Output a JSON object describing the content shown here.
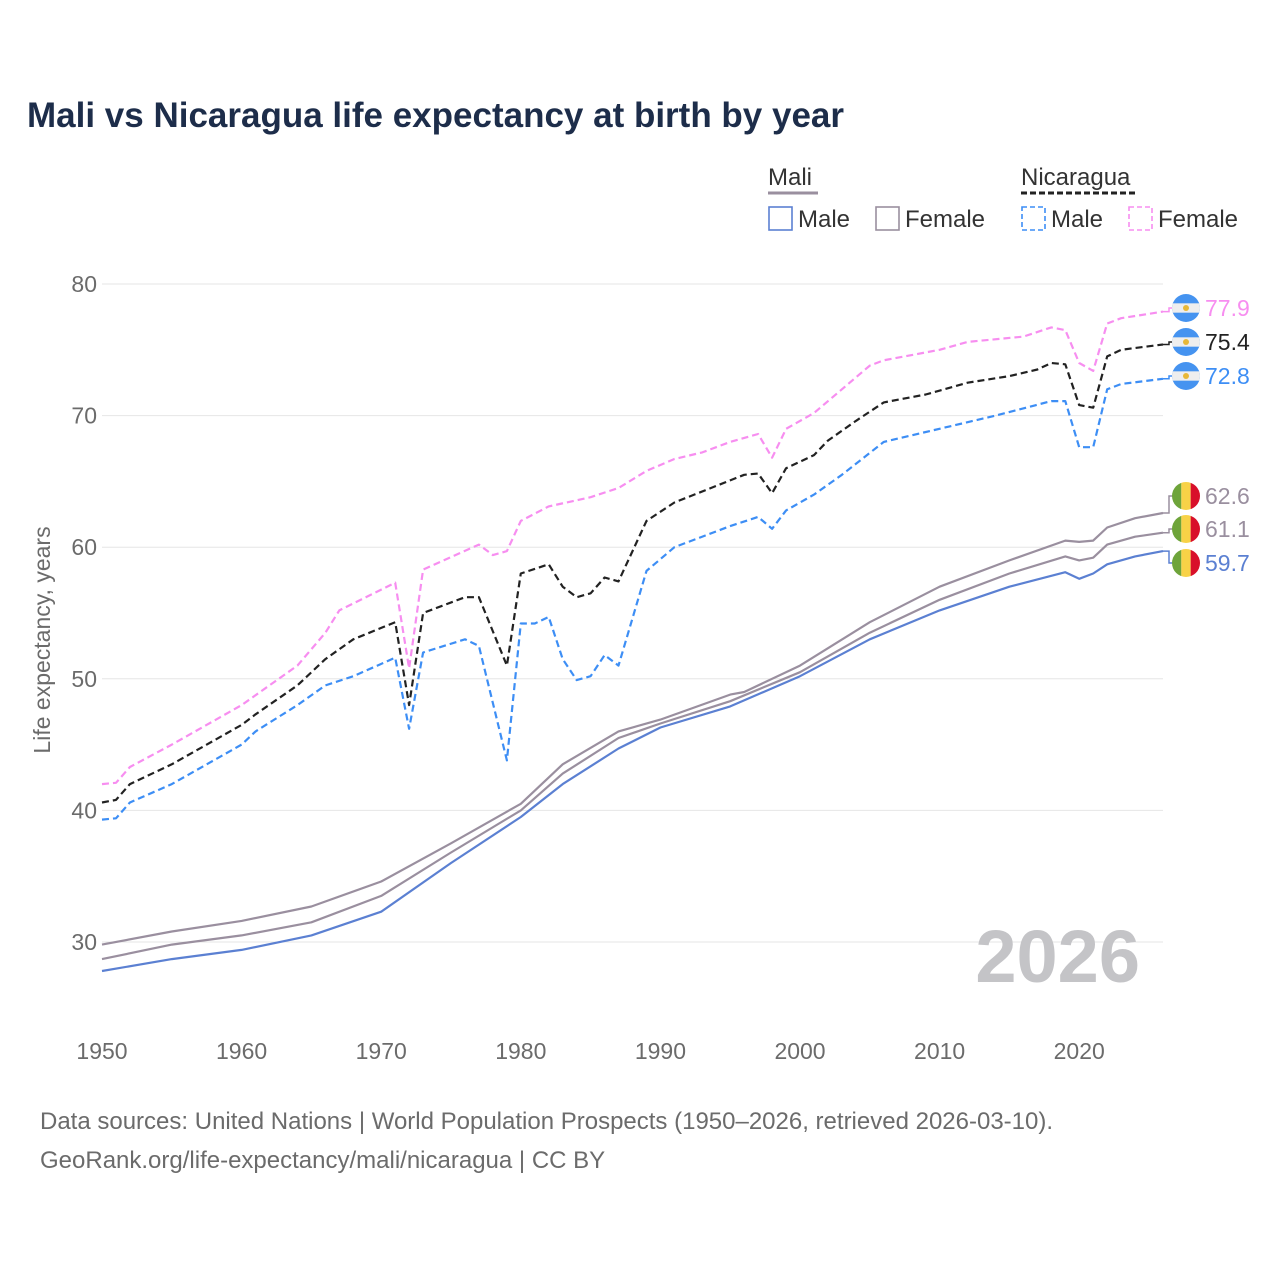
{
  "title": "Mali vs Nicaragua life expectancy at birth by year",
  "footer": {
    "line1": "Data sources: United Nations | World Population Prospects (1950–2026, retrieved 2026-03-10).",
    "line2": "GeoRank.org/life-expectancy/mali/nicaragua | CC BY"
  },
  "year_watermark": "2026",
  "legend": {
    "groups": [
      {
        "name": "Mali",
        "items": [
          "Male",
          "Female"
        ]
      },
      {
        "name": "Nicaragua",
        "items": [
          "Male",
          "Female"
        ]
      }
    ]
  },
  "chart_data": {
    "type": "line",
    "title": "Mali vs Nicaragua life expectancy at birth by year",
    "xlabel": "",
    "ylabel": "Life expectancy, years",
    "xlim": [
      1950,
      2026
    ],
    "ylim": [
      30,
      80
    ],
    "xticks": [
      1950,
      1960,
      1970,
      1980,
      1990,
      2000,
      2010,
      2020
    ],
    "yticks": [
      30,
      40,
      50,
      60,
      70,
      80
    ],
    "grid": true,
    "legend_position": "top-right",
    "series": [
      {
        "name": "Nicaragua Female",
        "country": "Nicaragua",
        "color": "#f78ef0",
        "dashed": true,
        "end_label": "77.9",
        "flag": "nicaragua",
        "x": [
          1950,
          1951,
          1952,
          1955,
          1960,
          1964,
          1966,
          1967,
          1971,
          1972,
          1973,
          1977,
          1978,
          1979,
          1980,
          1982,
          1985,
          1987,
          1989,
          1991,
          1993,
          1995,
          1997,
          1998,
          1999,
          2001,
          2003,
          2005,
          2006,
          2010,
          2012,
          2016,
          2018,
          2019,
          2020,
          2021,
          2022,
          2023,
          2026
        ],
        "y": [
          42,
          42.1,
          43.3,
          45,
          48,
          51,
          53.5,
          55.2,
          57.3,
          50.8,
          58.3,
          60.2,
          59.4,
          59.7,
          62,
          63.1,
          63.8,
          64.5,
          65.8,
          66.7,
          67.2,
          68,
          68.6,
          66.8,
          69,
          70.2,
          72,
          73.8,
          74.2,
          75,
          75.6,
          76,
          76.7,
          76.5,
          74,
          73.4,
          77,
          77.4,
          77.9
        ]
      },
      {
        "name": "Nicaragua",
        "country": "Nicaragua",
        "color": "#222222",
        "dashed": true,
        "end_label": "75.4",
        "flag": "nicaragua",
        "x": [
          1950,
          1951,
          1952,
          1955,
          1960,
          1961,
          1964,
          1966,
          1968,
          1971,
          1972,
          1973,
          1976,
          1977,
          1979,
          1980,
          1982,
          1983,
          1984,
          1985,
          1986,
          1987,
          1989,
          1991,
          1996,
          1997,
          1998,
          1999,
          2001,
          2002,
          2004,
          2006,
          2009,
          2012,
          2015,
          2017,
          2018,
          2019,
          2020,
          2021,
          2022,
          2023,
          2026
        ],
        "y": [
          40.6,
          40.8,
          42,
          43.5,
          46.5,
          47.3,
          49.5,
          51.5,
          53,
          54.3,
          48,
          55,
          56.2,
          56.2,
          51,
          58,
          58.7,
          57,
          56.2,
          56.5,
          57.7,
          57.4,
          62,
          63.4,
          65.5,
          65.6,
          64.1,
          66,
          67,
          68.1,
          69.6,
          71,
          71.6,
          72.5,
          73,
          73.5,
          74,
          73.9,
          70.8,
          70.6,
          74.5,
          75,
          75.4
        ]
      },
      {
        "name": "Nicaragua Male",
        "country": "Nicaragua",
        "color": "#3d8ef5",
        "dashed": true,
        "end_label": "72.8",
        "flag": "nicaragua",
        "x": [
          1950,
          1951,
          1952,
          1955,
          1960,
          1961,
          1964,
          1966,
          1968,
          1971,
          1972,
          1973,
          1976,
          1977,
          1979,
          1980,
          1981,
          1982,
          1983,
          1984,
          1985,
          1986,
          1987,
          1989,
          1991,
          1995,
          1997,
          1998,
          1999,
          2001,
          2003,
          2006,
          2008,
          2012,
          2014,
          2018,
          2019,
          2020,
          2021,
          2022,
          2023,
          2026
        ],
        "y": [
          39.3,
          39.4,
          40.6,
          42,
          45,
          46,
          48,
          49.5,
          50.2,
          51.6,
          46.2,
          52,
          53,
          52.5,
          43.8,
          54.2,
          54.2,
          54.7,
          51.5,
          49.9,
          50.2,
          51.8,
          51,
          58.2,
          60,
          61.6,
          62.3,
          61.4,
          62.8,
          64,
          65.5,
          68,
          68.5,
          69.5,
          70,
          71.1,
          71.1,
          67.6,
          67.6,
          72,
          72.4,
          72.8
        ]
      },
      {
        "name": "Mali Female",
        "country": "Mali",
        "color": "#9a8f9f",
        "dashed": false,
        "end_label": "62.6",
        "flag": "mali",
        "x": [
          1950,
          1955,
          1960,
          1965,
          1970,
          1975,
          1980,
          1983,
          1987,
          1990,
          1995,
          1996,
          2000,
          2005,
          2010,
          2015,
          2019,
          2020,
          2021,
          2022,
          2024,
          2026
        ],
        "y": [
          29.8,
          30.8,
          31.6,
          32.7,
          34.6,
          37.5,
          40.5,
          43.5,
          46,
          46.9,
          48.8,
          49,
          51,
          54.3,
          57,
          59,
          60.5,
          60.4,
          60.5,
          61.5,
          62.2,
          62.6
        ]
      },
      {
        "name": "Mali",
        "country": "Mali",
        "color": "#9a8f9f",
        "dashed": false,
        "end_label": "61.1",
        "flag": "mali",
        "x": [
          1950,
          1955,
          1960,
          1965,
          1970,
          1975,
          1980,
          1983,
          1987,
          1990,
          1995,
          2000,
          2005,
          2010,
          2015,
          2019,
          2020,
          2021,
          2022,
          2024,
          2026
        ],
        "y": [
          28.7,
          29.8,
          30.5,
          31.5,
          33.5,
          36.8,
          40,
          42.8,
          45.5,
          46.6,
          48.3,
          50.5,
          53.5,
          56,
          58,
          59.3,
          59,
          59.2,
          60.2,
          60.8,
          61.1
        ]
      },
      {
        "name": "Mali Male",
        "country": "Mali",
        "color": "#5b80d2",
        "dashed": false,
        "end_label": "59.7",
        "flag": "mali",
        "x": [
          1950,
          1955,
          1960,
          1965,
          1970,
          1975,
          1980,
          1983,
          1987,
          1990,
          1995,
          2000,
          2005,
          2010,
          2015,
          2019,
          2020,
          2021,
          2022,
          2024,
          2026
        ],
        "y": [
          27.8,
          28.7,
          29.4,
          30.5,
          32.3,
          36,
          39.5,
          42,
          44.7,
          46.3,
          47.9,
          50.2,
          53,
          55.2,
          57,
          58.1,
          57.6,
          58,
          58.7,
          59.3,
          59.7
        ]
      }
    ]
  }
}
